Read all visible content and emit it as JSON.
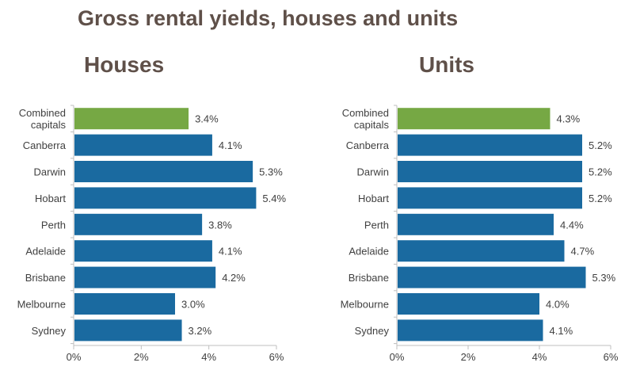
{
  "title": "Gross rental yields, houses and units",
  "colors": {
    "highlight": "#76a844",
    "bar": "#1a6aa0",
    "text": "#404040",
    "title": "#5f5049",
    "axis": "#bfbfbf"
  },
  "chart_data": [
    {
      "type": "bar",
      "orientation": "horizontal",
      "title": "Houses",
      "categories": [
        "Combined capitals",
        "Canberra",
        "Darwin",
        "Hobart",
        "Perth",
        "Adelaide",
        "Brisbane",
        "Melbourne",
        "Sydney"
      ],
      "category_lines": [
        [
          "Combined",
          "capitals"
        ],
        [
          "Canberra"
        ],
        [
          "Darwin"
        ],
        [
          "Hobart"
        ],
        [
          "Perth"
        ],
        [
          "Adelaide"
        ],
        [
          "Brisbane"
        ],
        [
          "Melbourne"
        ],
        [
          "Sydney"
        ]
      ],
      "values": [
        3.4,
        4.1,
        5.3,
        5.4,
        3.8,
        4.1,
        4.2,
        3.0,
        3.2
      ],
      "value_labels": [
        "3.4%",
        "4.1%",
        "5.3%",
        "5.4%",
        "3.8%",
        "4.1%",
        "4.2%",
        "3.0%",
        "3.2%"
      ],
      "xlim": [
        0,
        6
      ],
      "xticks": [
        0,
        2,
        4,
        6
      ],
      "xtick_labels": [
        "0%",
        "2%",
        "4%",
        "6%"
      ],
      "highlight_index": 0,
      "grid": false
    },
    {
      "type": "bar",
      "orientation": "horizontal",
      "title": "Units",
      "categories": [
        "Combined capitals",
        "Canberra",
        "Darwin",
        "Hobart",
        "Perth",
        "Adelaide",
        "Brisbane",
        "Melbourne",
        "Sydney"
      ],
      "category_lines": [
        [
          "Combined",
          "capitals"
        ],
        [
          "Canberra"
        ],
        [
          "Darwin"
        ],
        [
          "Hobart"
        ],
        [
          "Perth"
        ],
        [
          "Adelaide"
        ],
        [
          "Brisbane"
        ],
        [
          "Melbourne"
        ],
        [
          "Sydney"
        ]
      ],
      "values": [
        4.3,
        5.2,
        5.2,
        5.2,
        4.4,
        4.7,
        5.3,
        4.0,
        4.1
      ],
      "value_labels": [
        "4.3%",
        "5.2%",
        "5.2%",
        "5.2%",
        "4.4%",
        "4.7%",
        "5.3%",
        "4.0%",
        "4.1%"
      ],
      "xlim": [
        0,
        6
      ],
      "xticks": [
        0,
        2,
        4,
        6
      ],
      "xtick_labels": [
        "0%",
        "2%",
        "4%",
        "6%"
      ],
      "highlight_index": 0,
      "grid": false
    }
  ]
}
